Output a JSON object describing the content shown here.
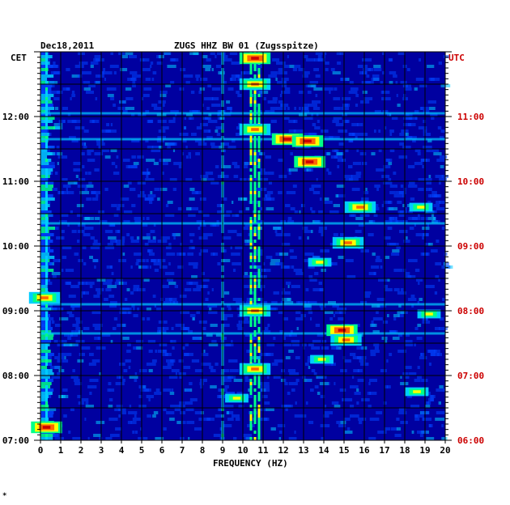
{
  "header": {
    "date": "Dec18,2011",
    "title": "ZUGS HHZ BW 01 (Zugsspitze)"
  },
  "left_axis": {
    "label": "CET",
    "ticks": [
      "12:00",
      "11:00",
      "10:00",
      "09:00",
      "08:00",
      "07:00"
    ]
  },
  "right_axis": {
    "label": "UTC",
    "ticks": [
      "11:00",
      "10:00",
      "09:00",
      "08:00",
      "07:00",
      "06:00"
    ]
  },
  "footnote": "*",
  "colors": {
    "background": "#0000a0",
    "grid": "#000000",
    "utc": "#cc0000",
    "text": "#000000"
  },
  "chart_data": {
    "type": "heatmap",
    "title": "ZUGS HHZ BW 01 (Zugsspitze)",
    "xlabel": "FREQUENCY (HZ)",
    "x_ticks": [
      0,
      1,
      2,
      3,
      4,
      5,
      6,
      7,
      8,
      9,
      10,
      11,
      12,
      13,
      14,
      15,
      16,
      17,
      18,
      19,
      20
    ],
    "xlim": [
      0,
      20
    ],
    "ylim_cet_hours": [
      7.0,
      13.0
    ],
    "grid": true,
    "colorscale": [
      "#0000a0",
      "#0044ff",
      "#00ccff",
      "#00ff88",
      "#ffff00",
      "#ff6600",
      "#cc0000"
    ],
    "persistent_lines_hz": [
      0.3,
      9.0,
      10.4,
      10.6,
      10.8
    ],
    "hotspots": [
      {
        "hz": 10.6,
        "cet": 12.9,
        "level": 6
      },
      {
        "hz": 10.6,
        "cet": 12.5,
        "level": 5
      },
      {
        "hz": 12.2,
        "cet": 11.65,
        "level": 6
      },
      {
        "hz": 13.2,
        "cet": 11.62,
        "level": 6
      },
      {
        "hz": 13.3,
        "cet": 11.3,
        "level": 6
      },
      {
        "hz": 15.2,
        "cet": 10.05,
        "level": 5
      },
      {
        "hz": 14.9,
        "cet": 8.7,
        "level": 6
      },
      {
        "hz": 15.1,
        "cet": 8.55,
        "level": 5
      },
      {
        "hz": 10.6,
        "cet": 9.0,
        "level": 5
      },
      {
        "hz": 10.6,
        "cet": 8.1,
        "level": 5
      },
      {
        "hz": 10.6,
        "cet": 11.8,
        "level": 5
      },
      {
        "hz": 0.3,
        "cet": 7.2,
        "level": 6
      },
      {
        "hz": 0.2,
        "cet": 9.2,
        "level": 5
      },
      {
        "hz": 15.8,
        "cet": 10.6,
        "level": 5
      },
      {
        "hz": 18.8,
        "cet": 10.6,
        "level": 4
      },
      {
        "hz": 13.8,
        "cet": 9.75,
        "level": 4
      },
      {
        "hz": 9.7,
        "cet": 7.65,
        "level": 4
      },
      {
        "hz": 18.6,
        "cet": 7.75,
        "level": 4
      },
      {
        "hz": 19.2,
        "cet": 8.95,
        "level": 4
      },
      {
        "hz": 13.9,
        "cet": 8.25,
        "level": 4
      }
    ],
    "horizontal_bursts_cet": [
      8.65,
      9.1,
      10.35,
      11.65,
      12.05
    ]
  }
}
